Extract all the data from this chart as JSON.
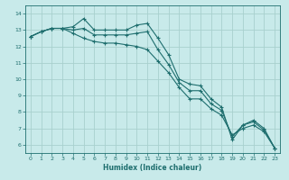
{
  "title": "",
  "xlabel": "Humidex (Indice chaleur)",
  "ylabel": "",
  "bg_color": "#c8eaea",
  "grid_color": "#a8d0ce",
  "line_color": "#1e6e6e",
  "x": [
    0,
    1,
    2,
    3,
    4,
    5,
    6,
    7,
    8,
    9,
    10,
    11,
    12,
    13,
    14,
    15,
    16,
    17,
    18,
    19,
    20,
    21,
    22,
    23
  ],
  "line1": [
    12.6,
    12.9,
    13.1,
    13.1,
    13.2,
    13.7,
    13.0,
    13.0,
    13.0,
    13.0,
    13.3,
    13.4,
    12.5,
    11.5,
    10.0,
    9.7,
    9.6,
    8.8,
    8.3,
    6.3,
    7.2,
    7.5,
    7.0,
    5.8
  ],
  "line2": [
    12.6,
    12.9,
    13.1,
    13.1,
    13.0,
    13.1,
    12.7,
    12.7,
    12.7,
    12.7,
    12.8,
    12.9,
    11.8,
    10.9,
    9.8,
    9.3,
    9.3,
    8.5,
    8.1,
    6.5,
    7.2,
    7.4,
    6.9,
    5.8
  ],
  "line3": [
    12.6,
    12.9,
    13.1,
    13.1,
    12.8,
    12.5,
    12.3,
    12.2,
    12.2,
    12.1,
    12.0,
    11.8,
    11.1,
    10.4,
    9.5,
    8.8,
    8.8,
    8.2,
    7.8,
    6.6,
    7.0,
    7.2,
    6.8,
    5.8
  ],
  "xlim": [
    -0.5,
    23.5
  ],
  "ylim": [
    5.5,
    14.5
  ],
  "yticks": [
    6,
    7,
    8,
    9,
    10,
    11,
    12,
    13,
    14
  ],
  "xticks": [
    0,
    1,
    2,
    3,
    4,
    5,
    6,
    7,
    8,
    9,
    10,
    11,
    12,
    13,
    14,
    15,
    16,
    17,
    18,
    19,
    20,
    21,
    22,
    23
  ],
  "figwidth": 3.2,
  "figheight": 2.0,
  "dpi": 100
}
